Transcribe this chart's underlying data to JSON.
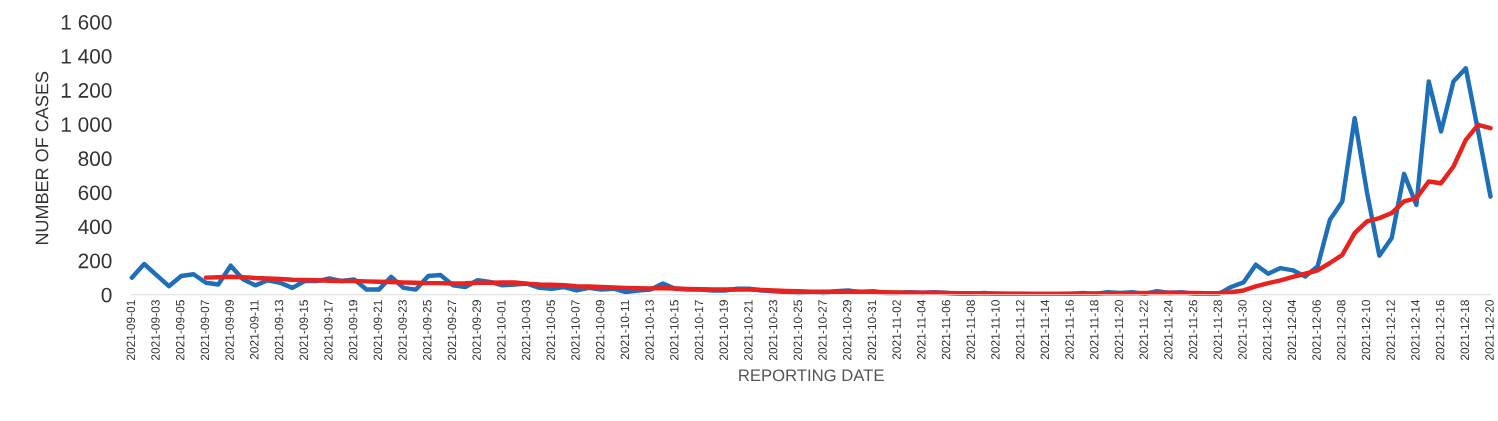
{
  "chart_data": {
    "type": "line",
    "xlabel": "REPORTING DATE",
    "ylabel": "NUMBER OF CASES",
    "x": [
      "2021-09-01",
      "2021-09-02",
      "2021-09-03",
      "2021-09-04",
      "2021-09-05",
      "2021-09-06",
      "2021-09-07",
      "2021-09-08",
      "2021-09-09",
      "2021-09-10",
      "2021-09-11",
      "2021-09-12",
      "2021-09-13",
      "2021-09-14",
      "2021-09-15",
      "2021-09-16",
      "2021-09-17",
      "2021-09-18",
      "2021-09-19",
      "2021-09-20",
      "2021-09-21",
      "2021-09-22",
      "2021-09-23",
      "2021-09-24",
      "2021-09-25",
      "2021-09-26",
      "2021-09-27",
      "2021-09-28",
      "2021-09-29",
      "2021-09-30",
      "2021-10-01",
      "2021-10-02",
      "2021-10-03",
      "2021-10-04",
      "2021-10-05",
      "2021-10-06",
      "2021-10-07",
      "2021-10-08",
      "2021-10-09",
      "2021-10-10",
      "2021-10-11",
      "2021-10-12",
      "2021-10-13",
      "2021-10-14",
      "2021-10-15",
      "2021-10-16",
      "2021-10-17",
      "2021-10-18",
      "2021-10-19",
      "2021-10-20",
      "2021-10-21",
      "2021-10-22",
      "2021-10-23",
      "2021-10-24",
      "2021-10-25",
      "2021-10-26",
      "2021-10-27",
      "2021-10-28",
      "2021-10-29",
      "2021-10-30",
      "2021-10-31",
      "2021-11-01",
      "2021-11-02",
      "2021-11-03",
      "2021-11-04",
      "2021-11-05",
      "2021-11-06",
      "2021-11-07",
      "2021-11-08",
      "2021-11-09",
      "2021-11-10",
      "2021-11-11",
      "2021-11-12",
      "2021-11-13",
      "2021-11-14",
      "2021-11-15",
      "2021-11-16",
      "2021-11-17",
      "2021-11-18",
      "2021-11-19",
      "2021-11-20",
      "2021-11-21",
      "2021-11-22",
      "2021-11-23",
      "2021-11-24",
      "2021-11-25",
      "2021-11-26",
      "2021-11-27",
      "2021-11-28",
      "2021-11-29",
      "2021-11-30",
      "2021-12-01",
      "2021-12-02",
      "2021-12-03",
      "2021-12-04",
      "2021-12-05",
      "2021-12-06",
      "2021-12-07",
      "2021-12-08",
      "2021-12-09",
      "2021-12-10",
      "2021-12-11",
      "2021-12-12",
      "2021-12-13",
      "2021-12-14",
      "2021-12-15",
      "2021-12-16",
      "2021-12-17",
      "2021-12-18",
      "2021-12-19",
      "2021-12-20"
    ],
    "series": [
      {
        "color": "#1f6fb8",
        "values": [
          100,
          180,
          115,
          50,
          110,
          120,
          70,
          60,
          170,
          90,
          55,
          85,
          70,
          40,
          80,
          80,
          95,
          80,
          90,
          30,
          30,
          105,
          40,
          30,
          110,
          115,
          55,
          45,
          85,
          75,
          55,
          60,
          65,
          40,
          35,
          45,
          25,
          40,
          30,
          35,
          15,
          25,
          30,
          65,
          35,
          30,
          30,
          25,
          25,
          35,
          35,
          25,
          20,
          15,
          10,
          15,
          10,
          20,
          25,
          15,
          20,
          10,
          10,
          15,
          10,
          15,
          10,
          5,
          5,
          10,
          5,
          5,
          5,
          5,
          5,
          5,
          5,
          10,
          5,
          15,
          10,
          15,
          5,
          20,
          10,
          15,
          5,
          5,
          5,
          45,
          72,
          176,
          123,
          156,
          143,
          107,
          166,
          440,
          547,
          1035,
          600,
          229,
          332,
          709,
          527,
          1250,
          957,
          1250,
          1328,
          957,
          576
        ]
      },
      {
        "color": "#e8231f",
        "values": [
          null,
          null,
          null,
          null,
          null,
          null,
          100,
          102,
          105,
          103,
          98,
          95,
          92,
          88,
          86,
          85,
          82,
          80,
          80,
          78,
          76,
          75,
          72,
          70,
          68,
          68,
          66,
          67,
          70,
          70,
          72,
          72,
          65,
          60,
          58,
          55,
          50,
          48,
          45,
          42,
          40,
          38,
          37,
          38,
          36,
          34,
          32,
          30,
          30,
          30,
          30,
          28,
          25,
          22,
          20,
          18,
          17,
          17,
          18,
          17,
          16,
          14,
          13,
          12,
          12,
          11,
          10,
          9,
          8,
          7,
          7,
          6,
          6,
          5,
          5,
          5,
          6,
          6,
          7,
          8,
          9,
          9,
          10,
          10,
          11,
          10,
          10,
          9,
          10,
          14,
          25,
          49,
          68,
          84,
          104,
          123,
          143,
          186,
          234,
          361,
          430,
          449,
          479,
          547,
          566,
          664,
          654,
          752,
          908,
          996,
          977
        ]
      }
    ],
    "xlim": [
      "2021-09-01",
      "2021-12-20"
    ],
    "xticks": [
      "2021-09-01",
      "2021-09-03",
      "2021-09-05",
      "2021-09-07",
      "2021-09-09",
      "2021-09-11",
      "2021-09-13",
      "2021-09-15",
      "2021-09-17",
      "2021-09-19",
      "2021-09-21",
      "2021-09-23",
      "2021-09-25",
      "2021-09-27",
      "2021-09-29",
      "2021-10-01",
      "2021-10-03",
      "2021-10-05",
      "2021-10-07",
      "2021-10-09",
      "2021-10-11",
      "2021-10-13",
      "2021-10-15",
      "2021-10-17",
      "2021-10-19",
      "2021-10-21",
      "2021-10-23",
      "2021-10-25",
      "2021-10-27",
      "2021-10-29",
      "2021-10-31",
      "2021-11-02",
      "2021-11-04",
      "2021-11-06",
      "2021-11-08",
      "2021-11-10",
      "2021-11-12",
      "2021-11-14",
      "2021-11-16",
      "2021-11-18",
      "2021-11-20",
      "2021-11-22",
      "2021-11-24",
      "2021-11-26",
      "2021-11-28",
      "2021-11-30",
      "2021-12-02",
      "2021-12-04",
      "2021-12-06",
      "2021-12-08",
      "2021-12-10",
      "2021-12-12",
      "2021-12-14",
      "2021-12-16",
      "2021-12-18",
      "2021-12-20"
    ],
    "ylim": [
      0,
      1600
    ],
    "yticks": [
      0,
      200,
      400,
      600,
      800,
      {
        "value": 1000,
        "label": "1 000"
      },
      {
        "value": 1200,
        "label": "1 200"
      },
      {
        "value": 1400,
        "label": "1 400"
      },
      {
        "value": 1600,
        "label": "1 600"
      }
    ],
    "grid": false,
    "legend": false
  }
}
